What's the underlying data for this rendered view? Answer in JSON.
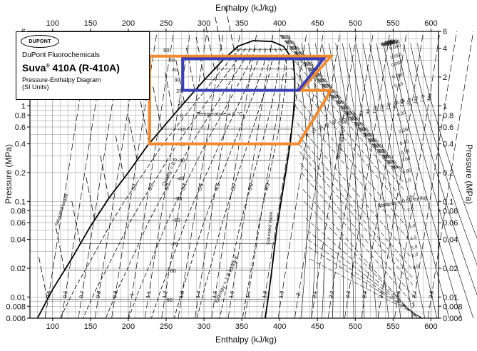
{
  "legend": {
    "logo_text": "DUPONT",
    "maker": "DuPont Fluorochemicals",
    "product_name": "Suva",
    "product_mark": "®",
    "product_code": " 410A (R-410A)",
    "subtitle": "Pressure-Enthalpy Diagram",
    "units": "(SI Units)"
  },
  "chart_data": {
    "type": "line",
    "title": "",
    "xlabel": "Enthalpy (kJ/kg)",
    "ylabel": "Pressure (MPa)",
    "x_scale": "linear",
    "y_scale": "log",
    "xlim": [
      70,
      610
    ],
    "ylim": [
      0.006,
      6
    ],
    "x_ticks": [
      100,
      150,
      200,
      250,
      300,
      350,
      400,
      450,
      500,
      550,
      600
    ],
    "y_ticks": [
      0.006,
      0.008,
      0.01,
      0.02,
      0.04,
      0.06,
      0.08,
      0.1,
      0.2,
      0.4,
      0.6,
      0.8,
      1,
      2,
      4,
      6
    ],
    "y_tick_labels": [
      "0.006",
      "0.008",
      "0.01",
      "0.02",
      "0.04",
      "0.06",
      "0.08",
      "0.1",
      "0.2",
      "0.4",
      "0.6",
      "0.8",
      "1",
      "2",
      "4",
      "6"
    ],
    "grid": true,
    "saturation_dome": {
      "liquid_label": "Saturated Liquid",
      "vapor_label": "Saturated Vapor",
      "liquid": [
        [
          80,
          0.006
        ],
        [
          100,
          0.012
        ],
        [
          125,
          0.025
        ],
        [
          150,
          0.055
        ],
        [
          175,
          0.11
        ],
        [
          200,
          0.2
        ],
        [
          225,
          0.38
        ],
        [
          250,
          0.65
        ],
        [
          275,
          1.1
        ],
        [
          300,
          1.85
        ],
        [
          325,
          3.0
        ],
        [
          345,
          4.2
        ],
        [
          365,
          4.8
        ]
      ],
      "vapor": [
        [
          365,
          4.8
        ],
        [
          390,
          4.7
        ],
        [
          405,
          4.2
        ],
        [
          418,
          3.0
        ],
        [
          420,
          2.0
        ],
        [
          420,
          1.3
        ],
        [
          418,
          0.8
        ],
        [
          414,
          0.4
        ],
        [
          408,
          0.2
        ],
        [
          402,
          0.1
        ],
        [
          396,
          0.05
        ],
        [
          390,
          0.02
        ],
        [
          385,
          0.01
        ],
        [
          381,
          0.006
        ]
      ]
    },
    "isotherms": {
      "label": "Temperature = 0 °C",
      "label_superheated": "Temperature = 50 °C",
      "values": [
        60,
        50,
        40,
        30,
        20,
        10,
        0,
        -10,
        -20,
        -30,
        -40,
        -50,
        -60,
        -70,
        -80,
        -90
      ],
      "superheated_values": [
        0,
        10,
        20,
        30,
        40,
        50,
        60,
        70,
        80,
        90,
        100,
        110,
        120,
        130,
        140,
        150,
        160,
        170,
        180
      ]
    },
    "quality": {
      "label": "Quality = 0.5",
      "values": [
        0.1,
        0.2,
        0.3,
        0.4,
        0.5,
        0.6,
        0.7,
        0.8,
        0.9
      ]
    },
    "entropy": {
      "label": "Entropy = 1.8 kJ/kg·K",
      "values": [
        0.5,
        0.6,
        0.7,
        0.8,
        0.9,
        1.0,
        1.1,
        1.2,
        1.3,
        1.4,
        1.5,
        1.6,
        1.7,
        1.8,
        1.9,
        2.0,
        2.1,
        2.2,
        2.3,
        2.4,
        2.5,
        2.6,
        2.7,
        2.8
      ]
    },
    "volume": {
      "label": "Volume = 0.50 m³/kg",
      "values": [
        0.004,
        0.005,
        0.006,
        0.008,
        0.01,
        0.015,
        0.02,
        0.03,
        0.04,
        0.05,
        0.06,
        0.08,
        0.1,
        0.15,
        0.2,
        0.3,
        0.4,
        0.5,
        0.6,
        0.8,
        1.0,
        1.5,
        2.0,
        3.0,
        4.0,
        5.0,
        6.0,
        8.0
      ]
    },
    "overlays": [
      {
        "name": "orange",
        "color": "#f28a2e",
        "points": [
          [
            228,
            3.3
          ],
          [
            468,
            3.3
          ],
          [
            428,
            1.45
          ],
          [
            468,
            1.45
          ],
          [
            425,
            0.4
          ],
          [
            228,
            0.4
          ]
        ]
      },
      {
        "name": "blue",
        "color": "#3b3fb8",
        "points": [
          [
            272,
            3.1
          ],
          [
            458,
            3.1
          ],
          [
            425,
            1.45
          ],
          [
            272,
            1.45
          ]
        ]
      }
    ]
  }
}
